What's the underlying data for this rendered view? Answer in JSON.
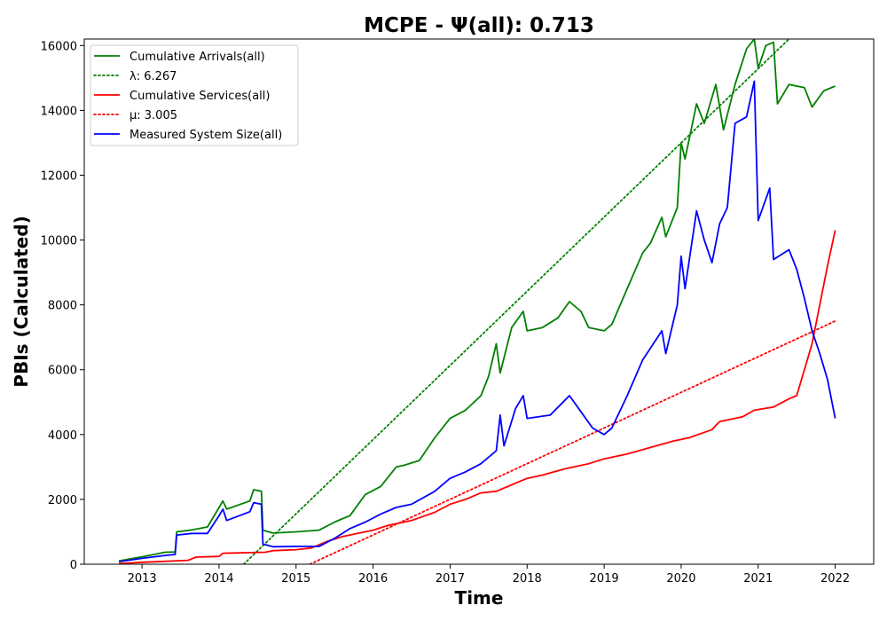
{
  "chart_data": {
    "type": "line",
    "title": "MCPE -  Ψ(all): 0.713",
    "xlabel": "Time",
    "ylabel": "PBIs (Calculated)",
    "xlim": [
      2012.25,
      2022.5
    ],
    "ylim": [
      0,
      16200
    ],
    "x_ticks": [
      "2013",
      "2014",
      "2015",
      "2016",
      "2017",
      "2018",
      "2019",
      "2020",
      "2021",
      "2022"
    ],
    "y_ticks": [
      "0",
      "2000",
      "4000",
      "6000",
      "8000",
      "10000",
      "12000",
      "14000",
      "16000"
    ],
    "grid": false,
    "legend_position": "upper left",
    "series": [
      {
        "name": "Cumulative Arrivals(all)",
        "color": "#008000",
        "style": "solid",
        "points": [
          [
            2012.7,
            100
          ],
          [
            2013.0,
            230
          ],
          [
            2013.3,
            370
          ],
          [
            2013.43,
            380
          ],
          [
            2013.45,
            1000
          ],
          [
            2013.65,
            1060
          ],
          [
            2013.85,
            1150
          ],
          [
            2014.0,
            1750
          ],
          [
            2014.05,
            1950
          ],
          [
            2014.1,
            1700
          ],
          [
            2014.4,
            1950
          ],
          [
            2014.45,
            2300
          ],
          [
            2014.55,
            2250
          ],
          [
            2014.57,
            1050
          ],
          [
            2014.7,
            960
          ],
          [
            2015.0,
            1000
          ],
          [
            2015.3,
            1050
          ],
          [
            2015.5,
            1300
          ],
          [
            2015.7,
            1500
          ],
          [
            2015.9,
            2150
          ],
          [
            2016.1,
            2400
          ],
          [
            2016.2,
            2700
          ],
          [
            2016.3,
            3000
          ],
          [
            2016.4,
            3050
          ],
          [
            2016.6,
            3200
          ],
          [
            2016.8,
            3900
          ],
          [
            2017.0,
            4500
          ],
          [
            2017.2,
            4750
          ],
          [
            2017.4,
            5200
          ],
          [
            2017.5,
            5800
          ],
          [
            2017.6,
            6800
          ],
          [
            2017.65,
            5900
          ],
          [
            2017.8,
            7300
          ],
          [
            2017.95,
            7800
          ],
          [
            2018.0,
            7200
          ],
          [
            2018.2,
            7300
          ],
          [
            2018.4,
            7600
          ],
          [
            2018.55,
            8100
          ],
          [
            2018.7,
            7800
          ],
          [
            2018.8,
            7300
          ],
          [
            2019.0,
            7200
          ],
          [
            2019.1,
            7400
          ],
          [
            2019.3,
            8500
          ],
          [
            2019.5,
            9600
          ],
          [
            2019.6,
            9900
          ],
          [
            2019.75,
            10700
          ],
          [
            2019.8,
            10100
          ],
          [
            2019.95,
            11000
          ],
          [
            2020.0,
            13000
          ],
          [
            2020.05,
            12500
          ],
          [
            2020.2,
            14200
          ],
          [
            2020.3,
            13600
          ],
          [
            2020.45,
            14800
          ],
          [
            2020.55,
            13400
          ],
          [
            2020.7,
            14800
          ],
          [
            2020.85,
            15900
          ],
          [
            2020.95,
            16200
          ],
          [
            2021.0,
            15300
          ],
          [
            2021.1,
            16000
          ],
          [
            2021.2,
            16100
          ],
          [
            2021.25,
            14200
          ],
          [
            2021.4,
            14800
          ],
          [
            2021.6,
            14700
          ],
          [
            2021.7,
            14100
          ],
          [
            2021.85,
            14600
          ],
          [
            2022.0,
            14750
          ]
        ]
      },
      {
        "name": "λ: 6.267",
        "color": "#008000",
        "style": "dotted",
        "points": [
          [
            2014.32,
            0
          ],
          [
            2021.4,
            16200
          ]
        ]
      },
      {
        "name": "Cumulative Services(all)",
        "color": "#ff0000",
        "style": "solid",
        "points": [
          [
            2012.7,
            20
          ],
          [
            2013.0,
            60
          ],
          [
            2013.6,
            120
          ],
          [
            2013.7,
            220
          ],
          [
            2014.0,
            240
          ],
          [
            2014.05,
            340
          ],
          [
            2014.6,
            370
          ],
          [
            2014.7,
            420
          ],
          [
            2015.0,
            450
          ],
          [
            2015.2,
            500
          ],
          [
            2015.4,
            700
          ],
          [
            2015.6,
            850
          ],
          [
            2015.8,
            950
          ],
          [
            2016.0,
            1050
          ],
          [
            2016.2,
            1200
          ],
          [
            2016.5,
            1350
          ],
          [
            2016.8,
            1600
          ],
          [
            2017.0,
            1850
          ],
          [
            2017.2,
            2000
          ],
          [
            2017.4,
            2200
          ],
          [
            2017.6,
            2250
          ],
          [
            2017.8,
            2450
          ],
          [
            2018.0,
            2650
          ],
          [
            2018.2,
            2750
          ],
          [
            2018.5,
            2950
          ],
          [
            2018.8,
            3100
          ],
          [
            2019.0,
            3250
          ],
          [
            2019.3,
            3400
          ],
          [
            2019.6,
            3600
          ],
          [
            2019.9,
            3800
          ],
          [
            2020.1,
            3900
          ],
          [
            2020.4,
            4150
          ],
          [
            2020.5,
            4400
          ],
          [
            2020.8,
            4550
          ],
          [
            2020.95,
            4750
          ],
          [
            2021.2,
            4850
          ],
          [
            2021.4,
            5100
          ],
          [
            2021.5,
            5200
          ],
          [
            2021.6,
            6000
          ],
          [
            2021.7,
            6800
          ],
          [
            2021.8,
            8000
          ],
          [
            2021.9,
            9200
          ],
          [
            2022.0,
            10300
          ]
        ]
      },
      {
        "name": "μ: 3.005",
        "color": "#ff0000",
        "style": "dotted",
        "points": [
          [
            2015.18,
            0
          ],
          [
            2022.0,
            7500
          ]
        ]
      },
      {
        "name": "Measured System Size(all)",
        "color": "#0000ff",
        "style": "solid",
        "points": [
          [
            2012.7,
            80
          ],
          [
            2013.0,
            180
          ],
          [
            2013.3,
            270
          ],
          [
            2013.43,
            300
          ],
          [
            2013.45,
            900
          ],
          [
            2013.65,
            950
          ],
          [
            2013.85,
            950
          ],
          [
            2014.0,
            1500
          ],
          [
            2014.05,
            1700
          ],
          [
            2014.1,
            1350
          ],
          [
            2014.4,
            1620
          ],
          [
            2014.45,
            1900
          ],
          [
            2014.55,
            1850
          ],
          [
            2014.57,
            620
          ],
          [
            2014.7,
            540
          ],
          [
            2015.0,
            550
          ],
          [
            2015.3,
            550
          ],
          [
            2015.5,
            800
          ],
          [
            2015.7,
            1100
          ],
          [
            2015.9,
            1300
          ],
          [
            2016.1,
            1550
          ],
          [
            2016.3,
            1750
          ],
          [
            2016.5,
            1850
          ],
          [
            2016.8,
            2250
          ],
          [
            2017.0,
            2650
          ],
          [
            2017.2,
            2850
          ],
          [
            2017.4,
            3100
          ],
          [
            2017.6,
            3500
          ],
          [
            2017.65,
            4600
          ],
          [
            2017.7,
            3650
          ],
          [
            2017.85,
            4800
          ],
          [
            2017.95,
            5200
          ],
          [
            2018.0,
            4500
          ],
          [
            2018.3,
            4600
          ],
          [
            2018.55,
            5200
          ],
          [
            2018.7,
            4700
          ],
          [
            2018.85,
            4200
          ],
          [
            2019.0,
            4000
          ],
          [
            2019.1,
            4200
          ],
          [
            2019.3,
            5200
          ],
          [
            2019.5,
            6300
          ],
          [
            2019.75,
            7200
          ],
          [
            2019.8,
            6500
          ],
          [
            2019.95,
            8000
          ],
          [
            2020.0,
            9500
          ],
          [
            2020.05,
            8500
          ],
          [
            2020.2,
            10900
          ],
          [
            2020.3,
            10000
          ],
          [
            2020.4,
            9300
          ],
          [
            2020.5,
            10500
          ],
          [
            2020.6,
            11000
          ],
          [
            2020.7,
            13600
          ],
          [
            2020.85,
            13800
          ],
          [
            2020.95,
            14900
          ],
          [
            2021.0,
            10600
          ],
          [
            2021.15,
            11600
          ],
          [
            2021.2,
            9400
          ],
          [
            2021.4,
            9700
          ],
          [
            2021.5,
            9100
          ],
          [
            2021.6,
            8200
          ],
          [
            2021.7,
            7200
          ],
          [
            2021.8,
            6500
          ],
          [
            2021.9,
            5700
          ],
          [
            2022.0,
            4500
          ]
        ]
      }
    ]
  }
}
